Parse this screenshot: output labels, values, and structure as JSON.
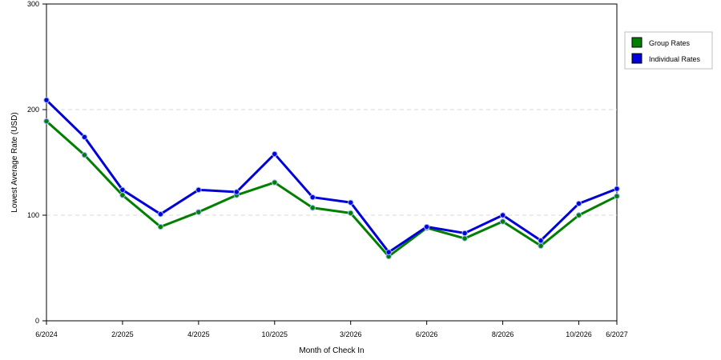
{
  "chart_data": {
    "type": "line",
    "xlabel": "Month of Check In",
    "ylabel": "Lowest Average Rate (USD)",
    "ylim": [
      0,
      300
    ],
    "yticks": [
      0,
      100,
      200,
      300
    ],
    "xtick_labels": [
      {
        "index": 0,
        "label": "6/2024"
      },
      {
        "index": 2,
        "label": "2/2025"
      },
      {
        "index": 4,
        "label": "4/2025"
      },
      {
        "index": 6,
        "label": "10/2025"
      },
      {
        "index": 8,
        "label": "3/2026"
      },
      {
        "index": 10,
        "label": "6/2026"
      },
      {
        "index": 12,
        "label": "8/2026"
      },
      {
        "index": 14,
        "label": "10/2026"
      },
      {
        "index": 15,
        "label": "6/2027"
      }
    ],
    "grid": true,
    "legend": "top-right",
    "series": [
      {
        "name": "Group Rates",
        "color": "#007f00",
        "values": [
          189,
          157,
          119,
          89,
          103,
          119,
          131,
          107,
          102,
          61,
          88,
          78,
          94,
          71,
          100,
          118
        ]
      },
      {
        "name": "Individual Rates",
        "color": "#0000d8",
        "values": [
          209,
          174,
          124,
          101,
          124,
          122,
          158,
          117,
          112,
          65,
          89,
          83,
          100,
          76,
          111,
          125
        ]
      }
    ]
  }
}
